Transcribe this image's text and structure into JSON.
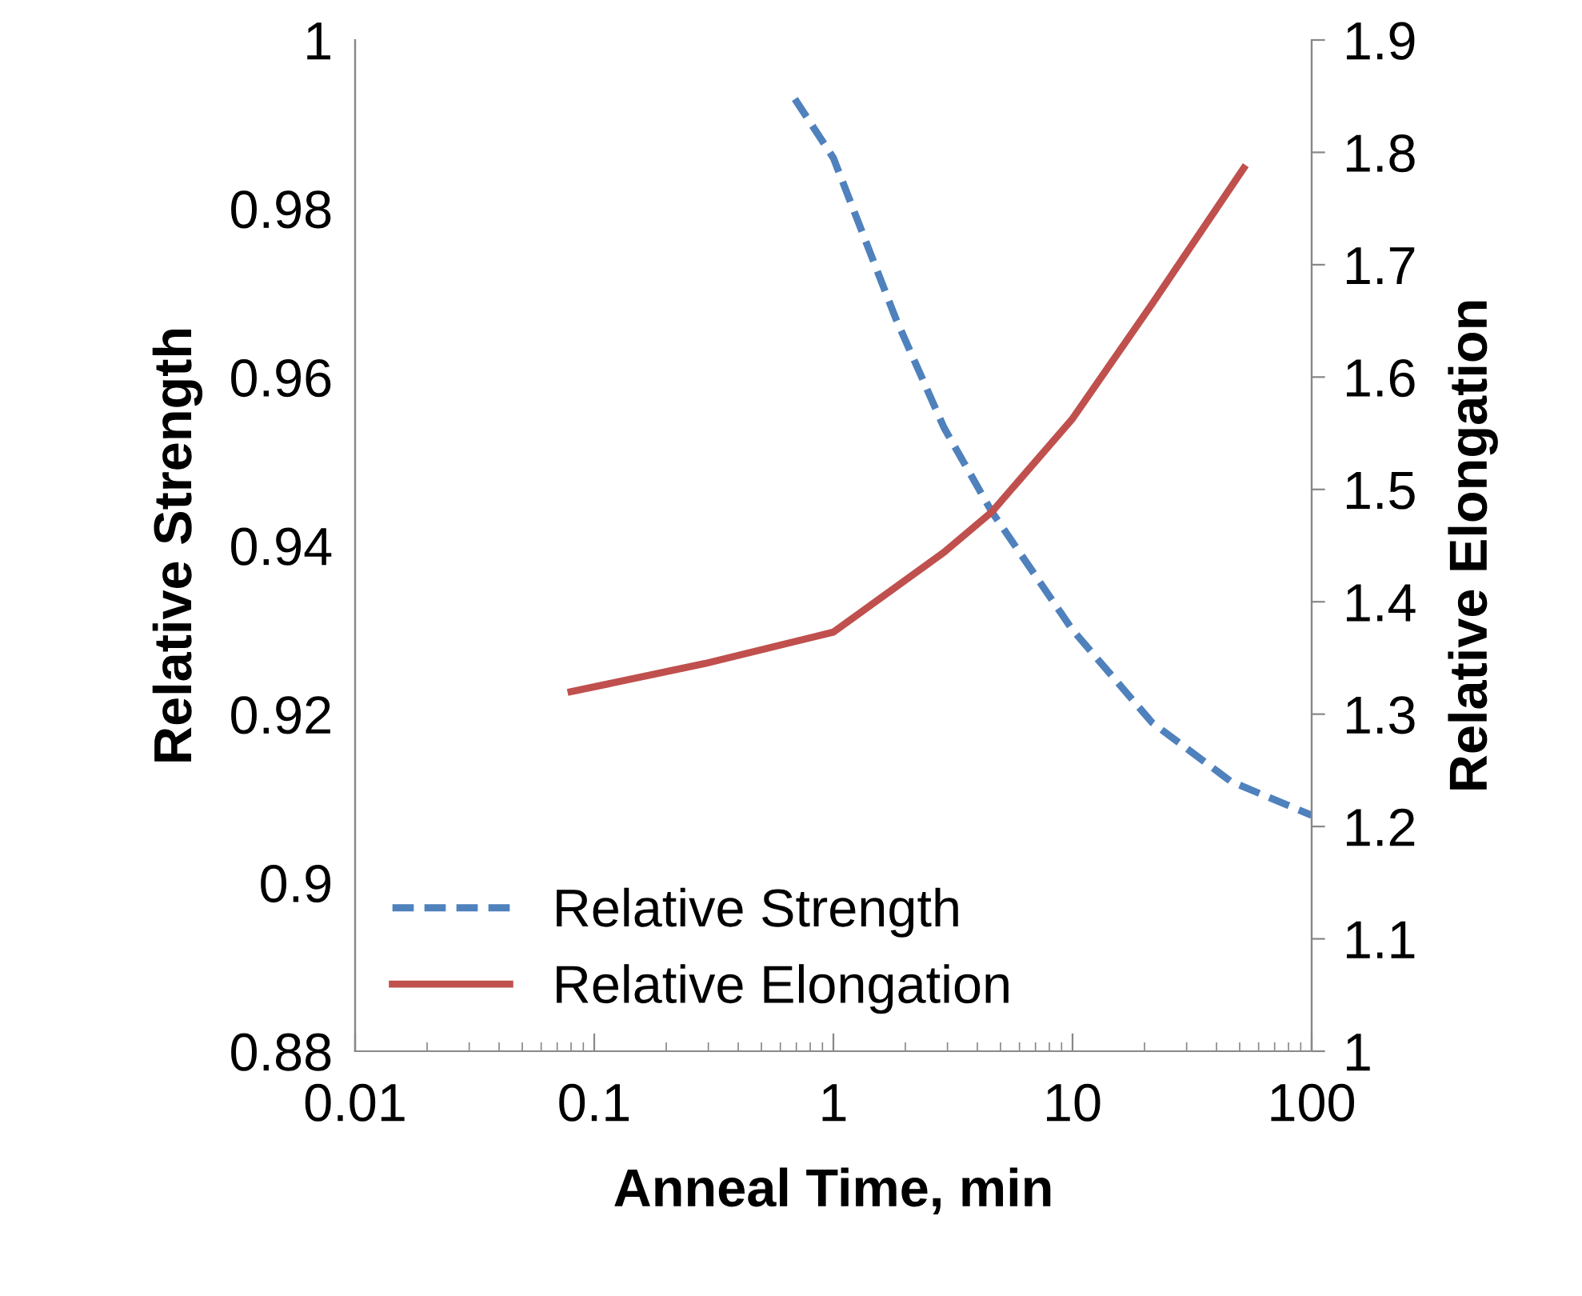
{
  "chart_data": {
    "type": "line",
    "xlabel": "Anneal Time, min",
    "ylabel": "Relative Strength",
    "y2label": "Relative Elongation",
    "log": "x",
    "grid": false,
    "legend": "bottom left",
    "marker": "none",
    "xlim": [
      0.01,
      100
    ],
    "xticks": [
      0.01,
      0.1,
      1,
      10,
      100
    ],
    "ylim": [
      0.88,
      1
    ],
    "yticks": [
      0.88,
      0.9,
      0.92,
      0.94,
      0.96,
      0.98,
      1
    ],
    "y2lim": [
      1,
      1.9
    ],
    "y2ticks": [
      1,
      1.1,
      1.2,
      1.3,
      1.4,
      1.5,
      1.6,
      1.7,
      1.8,
      1.9
    ],
    "series": [
      {
        "name": "Relative Strength",
        "color": "#4f81bd",
        "line_style": "dashed",
        "x": [
          0.69,
          1,
          1.82,
          2.9,
          4.6,
          10,
          21.5,
          46,
          100
        ],
        "values": [
          0.993,
          0.986,
          0.967,
          0.954,
          0.944,
          0.93,
          0.919,
          0.912,
          0.908
        ]
      },
      {
        "name": "Relative Elongation",
        "color": "#c0504d",
        "line_style": "solid",
        "axis": "y2",
        "x": [
          0.08,
          0.29,
          1,
          2.9,
          4.6,
          10,
          21.5,
          52
        ],
        "values": [
          1.32,
          1.345,
          1.373,
          1.444,
          1.48,
          1.563,
          1.665,
          1.786
        ]
      }
    ]
  }
}
